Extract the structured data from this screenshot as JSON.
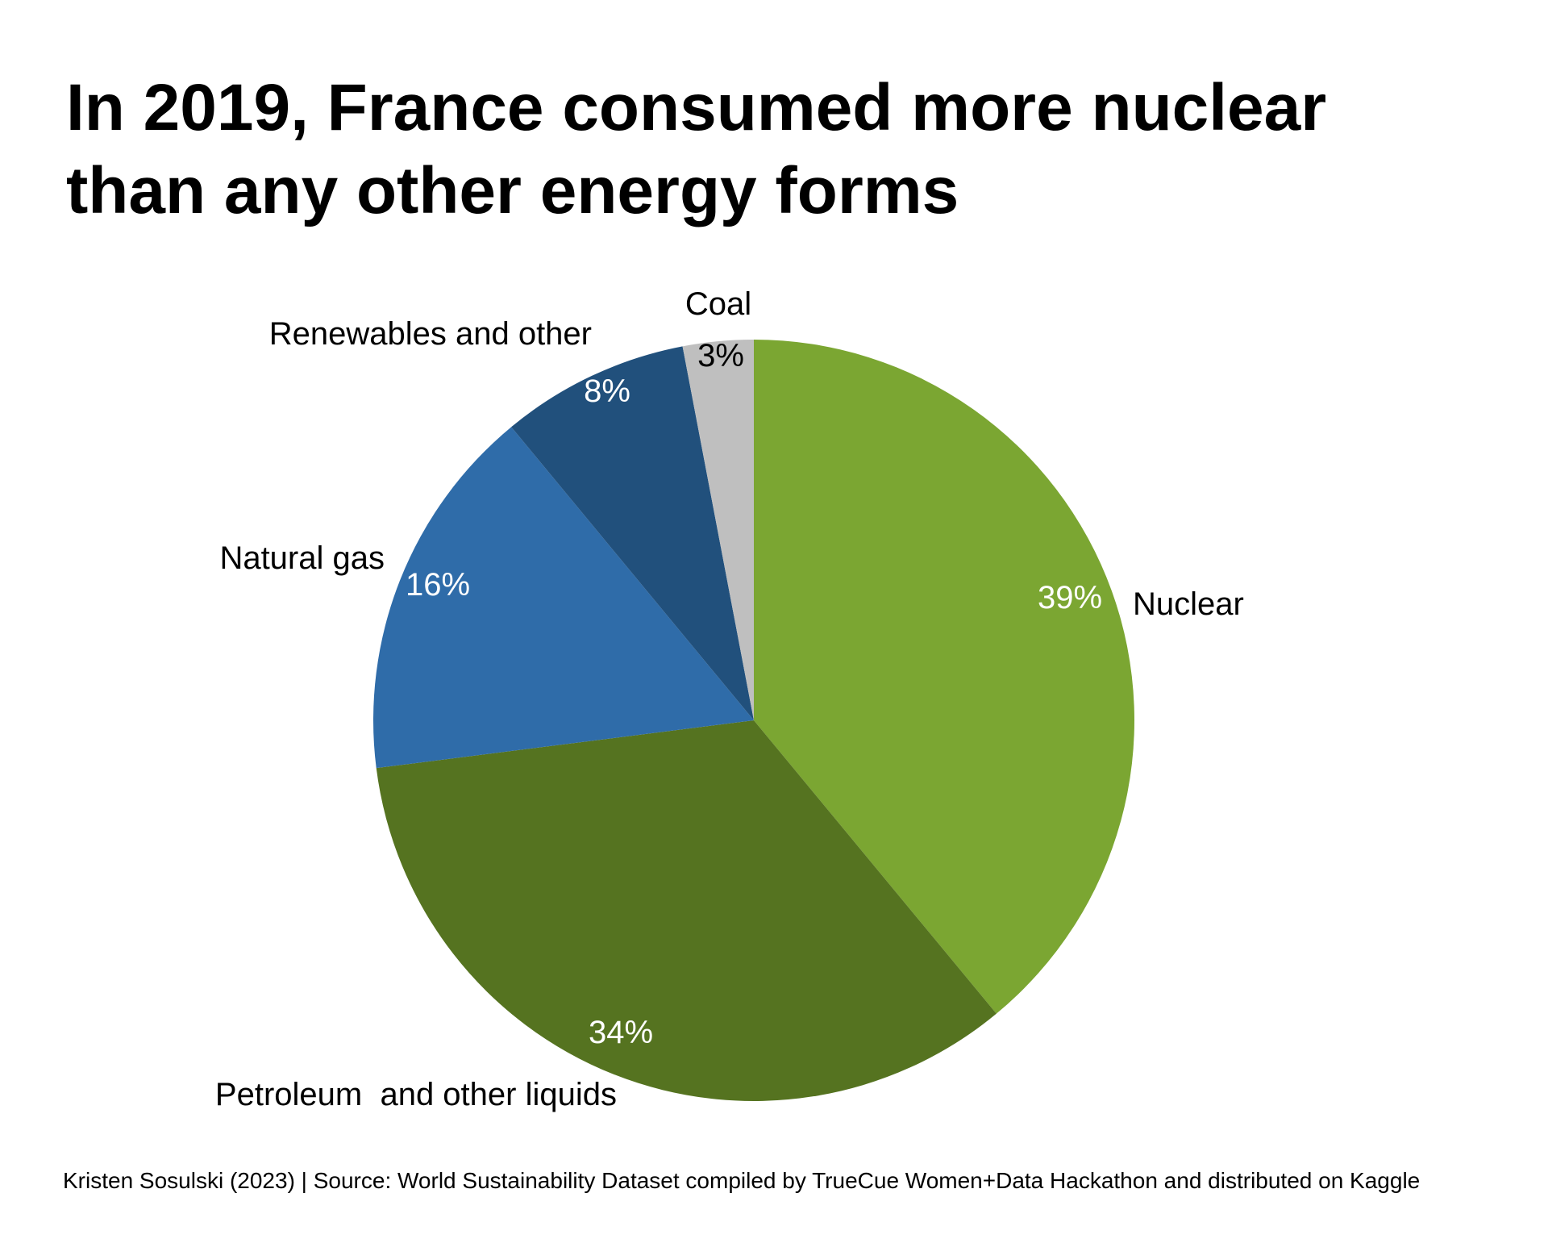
{
  "title_lines": [
    "In 2019, France consumed more nuclear",
    "than any other energy forms"
  ],
  "footer": "Kristen Sosulski (2023) | Source: World Sustainability Dataset compiled by TrueCue Women+Data Hackathon and distributed on Kaggle",
  "chart_data": {
    "type": "pie",
    "title": "In 2019, France consumed more nuclear than any other energy forms",
    "start": "12 o'clock",
    "direction": "clockwise",
    "slices": [
      {
        "label": "Nuclear",
        "value": 39,
        "value_label": "39%",
        "color": "#7BA632",
        "text_color": "#ffffff"
      },
      {
        "label": "Petroleum  and other liquids",
        "value": 34,
        "value_label": "34%",
        "color": "#557320",
        "text_color": "#ffffff"
      },
      {
        "label": "Natural gas",
        "value": 16,
        "value_label": "16%",
        "color": "#2F6CA9",
        "text_color": "#ffffff"
      },
      {
        "label": "Renewables and other",
        "value": 8,
        "value_label": "8%",
        "color": "#21507C",
        "text_color": "#ffffff"
      },
      {
        "label": "Coal",
        "value": 3,
        "value_label": "3%",
        "color": "#BFBFBF",
        "text_color": "#000000"
      }
    ],
    "legend": "none"
  }
}
